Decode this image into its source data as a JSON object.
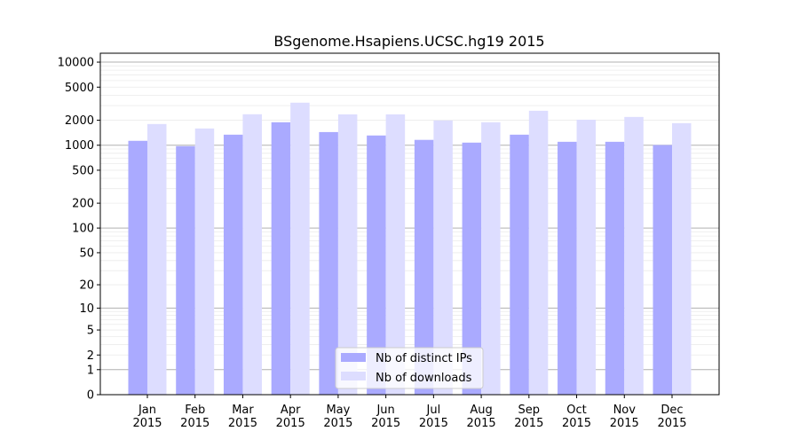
{
  "chart_data": {
    "type": "bar",
    "title": "BSgenome.Hsapiens.UCSC.hg19 2015",
    "xlabel": "",
    "ylabel": "",
    "y_scale": "log(1+y)",
    "ylim": [
      0,
      12800
    ],
    "yticks": [
      0,
      1,
      2,
      5,
      10,
      20,
      50,
      100,
      200,
      500,
      1000,
      2000,
      5000,
      10000
    ],
    "grid": true,
    "legend_position": "bottom-center",
    "categories": [
      [
        "Jan",
        "2015"
      ],
      [
        "Feb",
        "2015"
      ],
      [
        "Mar",
        "2015"
      ],
      [
        "Apr",
        "2015"
      ],
      [
        "May",
        "2015"
      ],
      [
        "Jun",
        "2015"
      ],
      [
        "Jul",
        "2015"
      ],
      [
        "Aug",
        "2015"
      ],
      [
        "Sep",
        "2015"
      ],
      [
        "Oct",
        "2015"
      ],
      [
        "Nov",
        "2015"
      ],
      [
        "Dec",
        "2015"
      ]
    ],
    "series": [
      {
        "name": "Nb of distinct IPs",
        "color": "#aaaaff",
        "values": [
          1130,
          975,
          1340,
          1890,
          1440,
          1310,
          1160,
          1075,
          1340,
          1100,
          1100,
          1005
        ]
      },
      {
        "name": "Nb of downloads",
        "color": "#ddddff",
        "values": [
          1800,
          1590,
          2360,
          3250,
          2350,
          2350,
          1985,
          1890,
          2600,
          2030,
          2190,
          1845
        ]
      }
    ]
  }
}
